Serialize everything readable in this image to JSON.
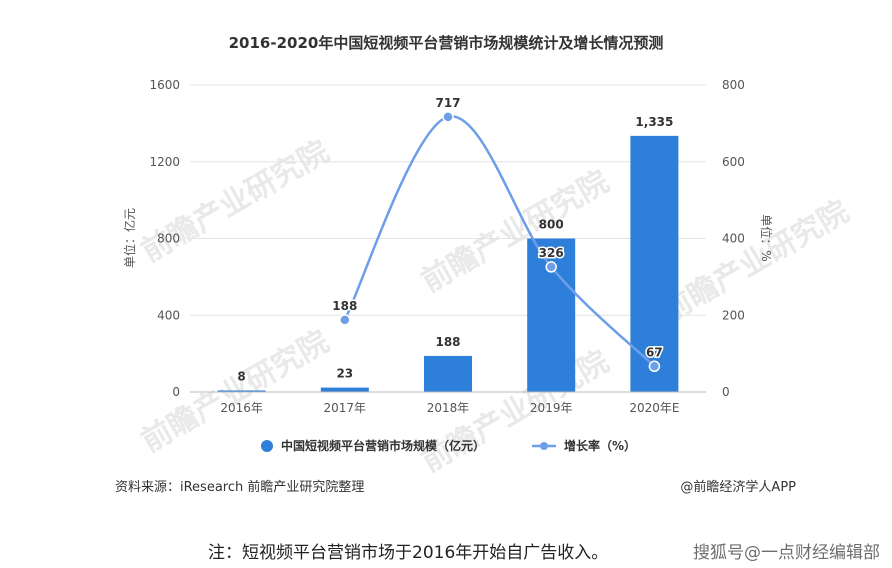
{
  "chart_data": {
    "type": "bar",
    "title": "2016-2020年中国短视频平台营销市场规模统计及增长情况预测",
    "categories": [
      "2016年",
      "2017年",
      "2018年",
      "2019年",
      "2020年E"
    ],
    "bar_series": {
      "name": "中国短视频平台营销市场规模（亿元）",
      "values": [
        8,
        23,
        188,
        800,
        1335
      ],
      "labels": [
        "8",
        "23",
        "188",
        "800",
        "1,335"
      ],
      "color": "#2e7fd9"
    },
    "line_series": {
      "name": "增长率（%）",
      "values": [
        null,
        188,
        717,
        326,
        67
      ],
      "labels": [
        "",
        "188",
        "717",
        "326",
        "67"
      ],
      "color": "#6d9ee8"
    },
    "y_left": {
      "label": "单位：亿元",
      "ylim": [
        0,
        1600
      ],
      "ticks": [
        "0",
        "400",
        "800",
        "1200",
        "1600"
      ]
    },
    "y_right": {
      "label": "单位：%",
      "ylim": [
        0,
        800
      ],
      "ticks": [
        "0",
        "200",
        "400",
        "600",
        "800"
      ]
    },
    "grid": true,
    "legend": "bottom"
  },
  "footer": {
    "source": "资料来源：iResearch 前瞻产业研究院整理",
    "credit": "@前瞻经济学人APP",
    "note": "注：短视频平台营销市场于2016年开始自广告收入。",
    "watermark_text": "搜狐号@一点财经编辑部"
  },
  "watermark": {
    "brand": "前瞻产业研究院"
  }
}
